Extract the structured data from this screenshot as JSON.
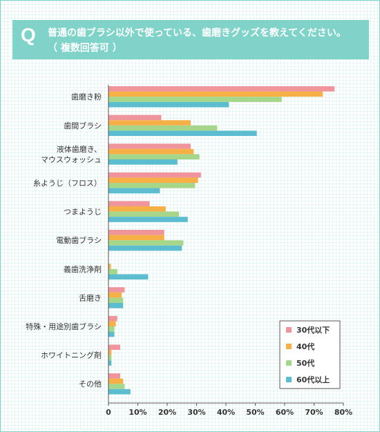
{
  "header": {
    "q_mark": "Q",
    "line1": "普通の歯ブラシ以外で使っている、歯磨きグッズを教えてください。",
    "line2": "（ 複数回答可 ）"
  },
  "colors": {
    "frame": "#7fd3c9",
    "header_bg": "#7fd3c9",
    "series": [
      "#f0959b",
      "#f6b046",
      "#a6d68a",
      "#5bbdcf"
    ]
  },
  "chart_data": {
    "type": "bar",
    "orientation": "horizontal",
    "categories": [
      [
        "歯磨き粉"
      ],
      [
        "歯間ブラシ"
      ],
      [
        "液体歯磨き、",
        "マウスウォッシュ"
      ],
      [
        "糸ようじ（フロス）"
      ],
      [
        "つまようじ"
      ],
      [
        "電動歯ブラシ"
      ],
      [
        "義歯洗浄剤"
      ],
      [
        "舌磨き"
      ],
      [
        "特殊・用途別歯ブラシ"
      ],
      [
        "ホワイトニング剤"
      ],
      [
        "その他"
      ]
    ],
    "series": [
      {
        "name": "30代以下",
        "values": [
          77,
          18,
          28,
          31.5,
          14,
          19,
          0,
          5.5,
          3,
          4,
          4
        ]
      },
      {
        "name": "40代",
        "values": [
          73,
          28,
          29,
          30.5,
          19.5,
          19,
          0.8,
          4.5,
          2.5,
          1,
          5
        ]
      },
      {
        "name": "50代",
        "values": [
          59,
          37,
          31,
          29.5,
          24,
          25.5,
          3,
          5,
          2,
          1,
          5.5
        ]
      },
      {
        "name": "60代以上",
        "values": [
          41,
          50.5,
          23.5,
          17.5,
          27,
          25,
          13.5,
          5,
          2,
          1,
          7.5
        ]
      }
    ],
    "x_ticks": [
      "0",
      "10%",
      "20%",
      "30%",
      "40%",
      "50%",
      "60%",
      "70%",
      "80%"
    ],
    "xlim": [
      0,
      80
    ],
    "legend_position": "bottom-right",
    "grid": false
  }
}
